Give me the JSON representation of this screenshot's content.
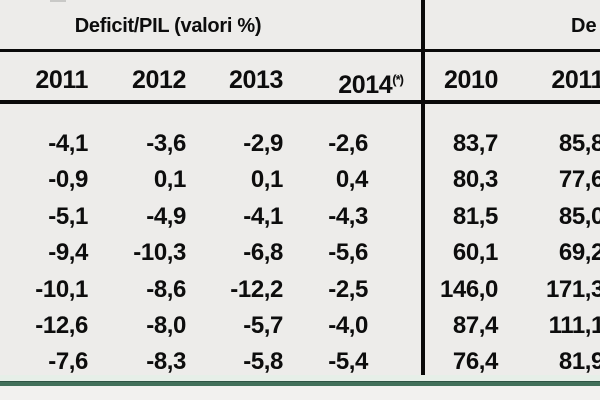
{
  "chart_data": {
    "type": "table",
    "sections": {
      "deficit": {
        "title": "Deficit/PIL (valori %)",
        "columns": [
          "2011",
          "2012",
          "2013",
          "2014"
        ],
        "superscript": "(*)"
      },
      "debt": {
        "title_visible_fragment": "De",
        "columns": [
          "2010",
          "2011"
        ]
      }
    },
    "rows": [
      {
        "deficit": [
          "-4,1",
          "-3,6",
          "-2,9",
          "-2,6"
        ],
        "debt": [
          "83,7",
          "85,8"
        ]
      },
      {
        "deficit": [
          "-0,9",
          "0,1",
          "0,1",
          "0,4"
        ],
        "debt": [
          "80,3",
          "77,6"
        ]
      },
      {
        "deficit": [
          "-5,1",
          "-4,9",
          "-4,1",
          "-4,3"
        ],
        "debt": [
          "81,5",
          "85,0"
        ]
      },
      {
        "deficit": [
          "-9,4",
          "-10,3",
          "-6,8",
          "-5,6"
        ],
        "debt": [
          "60,1",
          "69,2"
        ]
      },
      {
        "deficit": [
          "-10,1",
          "-8,6",
          "-12,2",
          "-2,5"
        ],
        "debt": [
          "146,0",
          "171,3"
        ]
      },
      {
        "deficit": [
          "-12,6",
          "-8,0",
          "-5,7",
          "-4,0"
        ],
        "debt": [
          "87,4",
          "111,1"
        ]
      },
      {
        "deficit": [
          "-7,6",
          "-8,3",
          "-5,8",
          "-5,4"
        ],
        "debt": [
          "76,4",
          "81,9"
        ]
      }
    ]
  },
  "colors": {
    "background": "#edecea",
    "text": "#0d0d0d",
    "rule_black": "#0a0a0a",
    "accent_green": "#42705a",
    "pale_green_band": "#e6efe8",
    "footer_background": "#f2f1ef"
  }
}
